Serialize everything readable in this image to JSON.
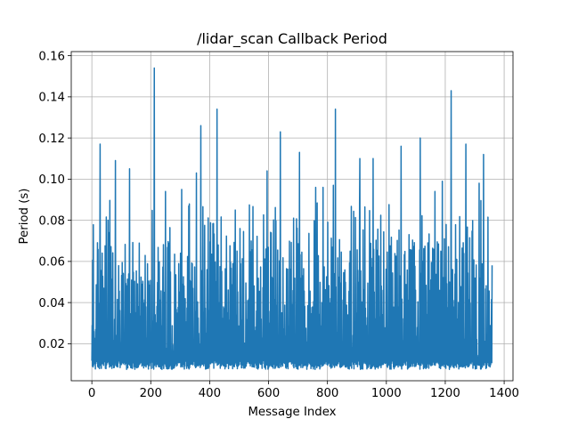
{
  "chart_data": {
    "type": "line",
    "title": "/lidar_scan Callback Period",
    "xlabel": "Message Index",
    "ylabel": "Period (s)",
    "xlim": [
      -70,
      1430
    ],
    "ylim": [
      0.002,
      0.162
    ],
    "x_ticks": [
      0,
      200,
      400,
      600,
      800,
      1000,
      1200,
      1400
    ],
    "x_tick_labels": [
      "0",
      "200",
      "400",
      "600",
      "800",
      "1000",
      "1200",
      "1400"
    ],
    "y_ticks": [
      0.02,
      0.04,
      0.06,
      0.08,
      0.1,
      0.12,
      0.14,
      0.16
    ],
    "y_tick_labels": [
      "0.02",
      "0.04",
      "0.06",
      "0.08",
      "0.10",
      "0.12",
      "0.14",
      "0.16"
    ],
    "grid": true,
    "series_color": "#1f77b4",
    "series": [
      {
        "count": 1360,
        "min": 0.0075,
        "typical_low": [
          0.0075,
          0.012
        ],
        "typical_high": [
          0.045,
          0.07
        ],
        "peaks": [
          {
            "x": 212,
            "y": 0.154
          },
          {
            "x": 425,
            "y": 0.134
          },
          {
            "x": 827,
            "y": 0.134
          },
          {
            "x": 1220,
            "y": 0.143
          },
          {
            "x": 640,
            "y": 0.123
          },
          {
            "x": 28,
            "y": 0.117
          },
          {
            "x": 1115,
            "y": 0.12
          },
          {
            "x": 370,
            "y": 0.126
          },
          {
            "x": 1270,
            "y": 0.117
          },
          {
            "x": 1050,
            "y": 0.116
          },
          {
            "x": 705,
            "y": 0.113
          },
          {
            "x": 1330,
            "y": 0.112
          },
          {
            "x": 80,
            "y": 0.109
          },
          {
            "x": 910,
            "y": 0.11
          },
          {
            "x": 955,
            "y": 0.11
          },
          {
            "x": 128,
            "y": 0.105
          },
          {
            "x": 595,
            "y": 0.104
          },
          {
            "x": 1190,
            "y": 0.099
          },
          {
            "x": 1315,
            "y": 0.098
          },
          {
            "x": 355,
            "y": 0.103
          },
          {
            "x": 785,
            "y": 0.096
          },
          {
            "x": 305,
            "y": 0.095
          },
          {
            "x": 250,
            "y": 0.094
          },
          {
            "x": 1165,
            "y": 0.094
          },
          {
            "x": 820,
            "y": 0.097
          },
          {
            "x": 760,
            "y": 0.096
          }
        ]
      }
    ]
  }
}
